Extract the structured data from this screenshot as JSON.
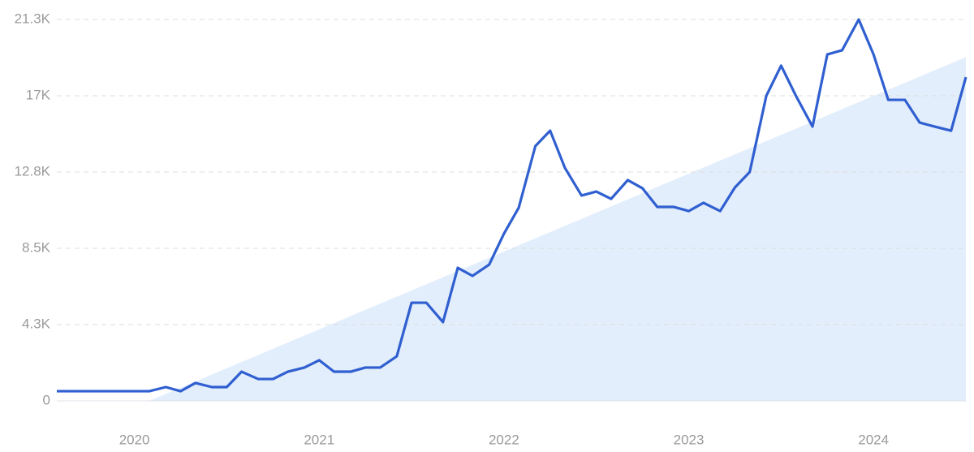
{
  "chart_data": {
    "type": "line",
    "x": [
      2019.58,
      2019.67,
      2019.75,
      2019.83,
      2019.92,
      2020,
      2020.08,
      2020.17,
      2020.25,
      2020.33,
      2020.42,
      2020.5,
      2020.58,
      2020.67,
      2020.75,
      2020.83,
      2020.92,
      2021,
      2021.08,
      2021.17,
      2021.25,
      2021.33,
      2021.42,
      2021.5,
      2021.58,
      2021.67,
      2021.75,
      2021.83,
      2021.92,
      2022,
      2022.08,
      2022.17,
      2022.25,
      2022.33,
      2022.42,
      2022.5,
      2022.58,
      2022.67,
      2022.75,
      2022.83,
      2022.92,
      2023,
      2023.08,
      2023.17,
      2023.25,
      2023.33,
      2023.42,
      2023.5,
      2023.58,
      2023.67,
      2023.75,
      2023.83,
      2023.92,
      2024,
      2024.08,
      2024.17,
      2024.25,
      2024.33,
      2024.42,
      2024.5
    ],
    "series": [
      {
        "color": "#2f5fd0",
        "values": [
          540,
          540,
          540,
          540,
          540,
          540,
          540,
          770,
          540,
          1000,
          770,
          770,
          1630,
          1220,
          1220,
          1630,
          1860,
          2270,
          1630,
          1630,
          1860,
          1860,
          2490,
          5480,
          5480,
          4400,
          7430,
          6980,
          7610,
          9340,
          10790,
          14230,
          15090,
          13010,
          11470,
          11690,
          11280,
          12330,
          11870,
          10830,
          10830,
          10600,
          11060,
          10600,
          11920,
          12780,
          17040,
          18720,
          17040,
          15320,
          19350,
          19580,
          21300,
          19350,
          16810,
          16810,
          15540,
          15320,
          15090,
          18080
        ]
      }
    ],
    "trend": {
      "color": "#e3eefc",
      "x": [
        2020.08,
        2024.5
      ],
      "values": [
        0,
        19200
      ]
    },
    "xlim": [
      2019.58,
      2024.5
    ],
    "xticks": [
      2020,
      2021,
      2022,
      2023,
      2024
    ],
    "ylim": [
      0,
      21300
    ],
    "yticks": [
      0,
      {
        "value": 4260,
        "label": "4.3K"
      },
      {
        "value": 8520,
        "label": "8.5K"
      },
      {
        "value": 12780,
        "label": "12.8K"
      },
      {
        "value": 17040,
        "label": "17K"
      },
      {
        "value": 21300,
        "label": "21.3K"
      }
    ],
    "grid": true
  }
}
